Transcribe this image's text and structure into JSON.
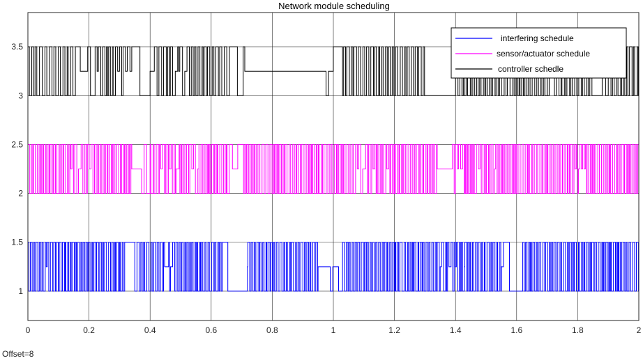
{
  "chart_data": {
    "type": "line",
    "title": "Network module scheduling",
    "xlabel": "",
    "ylabel": "",
    "xlim": [
      0,
      2
    ],
    "ylim": [
      0.7,
      3.85
    ],
    "xticks": [
      "0",
      "0.2",
      "0.4",
      "0.6",
      "0.8",
      "1",
      "1.2",
      "1.4",
      "1.6",
      "1.8",
      "2"
    ],
    "yticks": [
      "1",
      "1.5",
      "2",
      "2.5",
      "3",
      "3.5"
    ],
    "grid": true,
    "legend_position": "top-right",
    "footer": "Offset=8",
    "series": [
      {
        "name": "interfering schedule",
        "color": "#0000ff",
        "base": 1,
        "high": 1.5,
        "mid": 1.25,
        "step_width": 0.004,
        "segments": [
          {
            "from": 0.0,
            "to": 0.0,
            "level": 1
          },
          {
            "from": 0.0,
            "to": 0.06,
            "mode": "toggle"
          },
          {
            "from": 0.06,
            "to": 0.09,
            "mode": "toggle_sparse"
          },
          {
            "from": 0.09,
            "to": 0.32,
            "mode": "toggle"
          },
          {
            "from": 0.32,
            "to": 0.35,
            "mode": "sparse"
          },
          {
            "from": 0.35,
            "to": 0.44,
            "mode": "toggle"
          },
          {
            "from": 0.44,
            "to": 0.5,
            "mode": "toggle_sparse"
          },
          {
            "from": 0.5,
            "to": 0.64,
            "mode": "toggle"
          },
          {
            "from": 0.64,
            "to": 0.72,
            "mode": "sparse"
          },
          {
            "from": 0.72,
            "to": 0.95,
            "mode": "toggle"
          },
          {
            "from": 0.95,
            "to": 0.99,
            "level": 1.25
          },
          {
            "from": 0.99,
            "to": 1.03,
            "mode": "sparse"
          },
          {
            "from": 1.03,
            "to": 1.34,
            "mode": "toggle"
          },
          {
            "from": 1.34,
            "to": 1.43,
            "mode": "toggle_sparse"
          },
          {
            "from": 1.43,
            "to": 1.55,
            "mode": "toggle"
          },
          {
            "from": 1.55,
            "to": 1.62,
            "mode": "sparse"
          },
          {
            "from": 1.62,
            "to": 2.0,
            "mode": "toggle"
          }
        ]
      },
      {
        "name": "sensor/actuator schedule",
        "color": "#ff00ff",
        "base": 2,
        "high": 2.5,
        "mid": 2.25,
        "step_width": 0.004,
        "segments": [
          {
            "from": 0.0,
            "to": 0.11,
            "mode": "toggle"
          },
          {
            "from": 0.11,
            "to": 0.24,
            "mode": "toggle_sparse"
          },
          {
            "from": 0.24,
            "to": 0.34,
            "mode": "toggle"
          },
          {
            "from": 0.34,
            "to": 0.4,
            "mode": "sparse"
          },
          {
            "from": 0.4,
            "to": 0.56,
            "mode": "toggle_sparse"
          },
          {
            "from": 0.56,
            "to": 0.66,
            "mode": "toggle"
          },
          {
            "from": 0.66,
            "to": 0.71,
            "mode": "sparse"
          },
          {
            "from": 0.71,
            "to": 1.05,
            "mode": "toggle"
          },
          {
            "from": 1.05,
            "to": 1.2,
            "mode": "toggle_sparse"
          },
          {
            "from": 1.2,
            "to": 1.34,
            "mode": "toggle"
          },
          {
            "from": 1.34,
            "to": 1.39,
            "level": 2.25
          },
          {
            "from": 1.39,
            "to": 1.55,
            "mode": "toggle_sparse"
          },
          {
            "from": 1.55,
            "to": 1.75,
            "mode": "toggle"
          },
          {
            "from": 1.75,
            "to": 1.83,
            "mode": "toggle_sparse"
          },
          {
            "from": 1.83,
            "to": 2.0,
            "mode": "toggle"
          }
        ]
      },
      {
        "name": "controller schedle",
        "color": "#000000",
        "base": 3,
        "high": 3.5,
        "mid": 3.25,
        "step_width": 0.005,
        "segments": [
          {
            "from": 0.0,
            "to": 0.16,
            "mode": "toggle"
          },
          {
            "from": 0.16,
            "to": 0.22,
            "mode": "sparse"
          },
          {
            "from": 0.22,
            "to": 0.34,
            "mode": "toggle_sparse"
          },
          {
            "from": 0.34,
            "to": 0.4,
            "mode": "sparse"
          },
          {
            "from": 0.4,
            "to": 0.55,
            "mode": "toggle_sparse"
          },
          {
            "from": 0.55,
            "to": 0.66,
            "mode": "toggle"
          },
          {
            "from": 0.66,
            "to": 0.71,
            "mode": "sparse"
          },
          {
            "from": 0.71,
            "to": 0.96,
            "level": 3.25
          },
          {
            "from": 0.96,
            "to": 1.03,
            "mode": "sparse"
          },
          {
            "from": 1.03,
            "to": 1.3,
            "mode": "toggle"
          },
          {
            "from": 1.3,
            "to": 1.4,
            "level": 3
          },
          {
            "from": 1.4,
            "to": 1.7,
            "mode": "toggle"
          },
          {
            "from": 1.7,
            "to": 1.76,
            "mode": "toggle_sparse"
          },
          {
            "from": 1.76,
            "to": 1.85,
            "mode": "toggle"
          },
          {
            "from": 1.85,
            "to": 1.9,
            "mode": "sparse"
          },
          {
            "from": 1.9,
            "to": 2.0,
            "mode": "toggle"
          }
        ]
      }
    ]
  }
}
